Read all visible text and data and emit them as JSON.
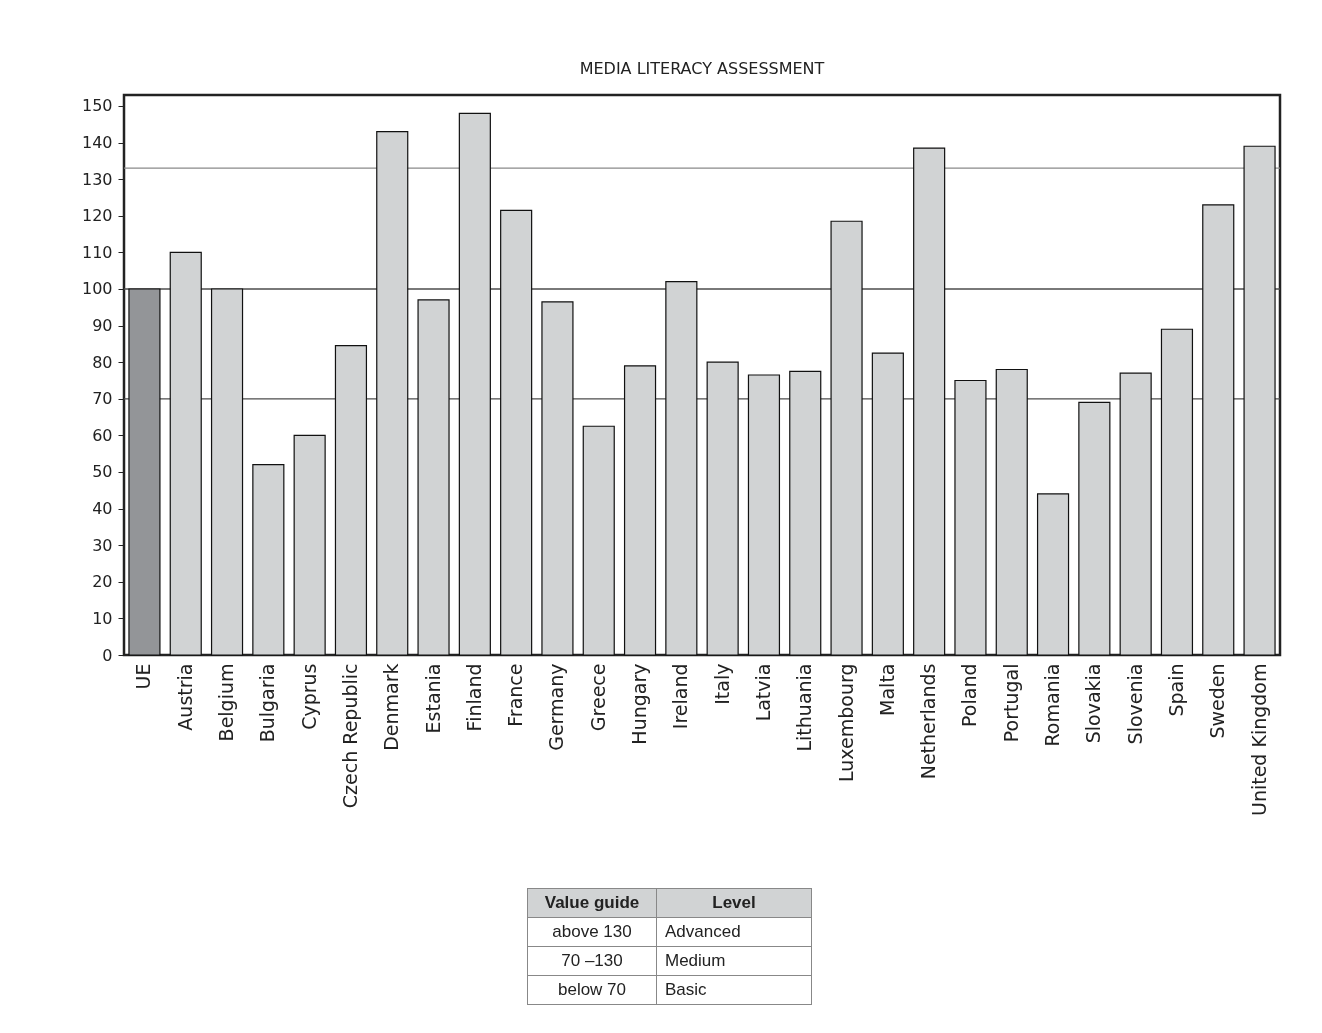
{
  "chart_data": {
    "type": "bar",
    "title": "MEDIA LITERACY ASSESSMENT",
    "categories": [
      "UE",
      "Austria",
      "Belgium",
      "Bulgaria",
      "Cyprus",
      "Czech Republic",
      "Denmark",
      "Estania",
      "Finland",
      "France",
      "Germany",
      "Greece",
      "Hungary",
      "Ireland",
      "Italy",
      "Latvia",
      "Lithuania",
      "Luxembourg",
      "Malta",
      "Netherlands",
      "Poland",
      "Portugal",
      "Romania",
      "Slovakia",
      "Slovenia",
      "Spain",
      "Sweden",
      "United Kingdom"
    ],
    "values": [
      100,
      110,
      100,
      52,
      60,
      84.5,
      143,
      97,
      148,
      121.5,
      96.5,
      62.5,
      79,
      102,
      80,
      76.5,
      77.5,
      118.5,
      82.5,
      138.5,
      75,
      78,
      44,
      69,
      77,
      89,
      123,
      139
    ],
    "colors": [
      "#939598",
      "#d1d3d4",
      "#d1d3d4",
      "#d1d3d4",
      "#d1d3d4",
      "#d1d3d4",
      "#d1d3d4",
      "#d1d3d4",
      "#d1d3d4",
      "#d1d3d4",
      "#d1d3d4",
      "#d1d3d4",
      "#d1d3d4",
      "#d1d3d4",
      "#d1d3d4",
      "#d1d3d4",
      "#d1d3d4",
      "#d1d3d4",
      "#d1d3d4",
      "#d1d3d4",
      "#d1d3d4",
      "#d1d3d4",
      "#d1d3d4",
      "#d1d3d4",
      "#d1d3d4",
      "#d1d3d4",
      "#d1d3d4",
      "#d1d3d4"
    ],
    "ylim": [
      0,
      153
    ],
    "yticks": [
      0,
      10,
      20,
      30,
      40,
      50,
      60,
      70,
      80,
      90,
      100,
      110,
      120,
      130,
      140,
      150
    ],
    "ref_lines": [
      {
        "axis": "y",
        "value": 70,
        "color": "#4d4d4d"
      },
      {
        "axis": "y",
        "value": 100,
        "color": "#4d4d4d"
      },
      {
        "axis": "y",
        "value": 133,
        "color": "#8a8a8a"
      }
    ],
    "annotations": [
      "Value guide",
      "Level",
      "above 130",
      "Advanced",
      "70 –130",
      "Medium",
      "below 70",
      "Basic"
    ],
    "grid": false
  }
}
